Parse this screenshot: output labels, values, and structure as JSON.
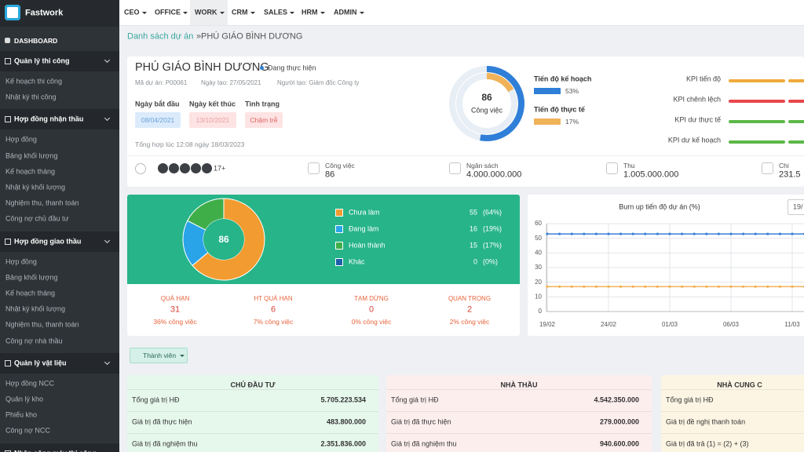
{
  "sidebar": {
    "brand": "Fastwork",
    "dashboard": "DASHBOARD",
    "sections": [
      {
        "title": "Quản lý thi công",
        "items": [
          "Kế hoạch thi công",
          "Nhật ký thi công"
        ]
      },
      {
        "title": "Hợp đồng nhận thầu",
        "items": [
          "Hợp đồng",
          "Bảng khối lượng",
          "Kế hoạch tháng",
          "Nhật ký khối lượng",
          "Nghiệm thu, thanh toán",
          "Công nợ chủ đầu tư"
        ]
      },
      {
        "title": "Hợp đồng giao thầu",
        "items": [
          "Hợp đồng",
          "Bảng khối lượng",
          "Kế hoạch tháng",
          "Nhật ký khối lượng",
          "Nghiệm thu, thanh toán",
          "Công nợ nhà thầu"
        ]
      },
      {
        "title": "Quản lý vật liệu",
        "items": [
          "Hợp đồng NCC",
          "Quản lý kho",
          "Phiếu kho",
          "Công nợ NCC"
        ]
      },
      {
        "title": "Nhập công máy thi công",
        "items": []
      }
    ]
  },
  "topnav": [
    "CEO",
    "OFFICE",
    "WORK",
    "CRM",
    "SALES",
    "HRM",
    "ADMIN"
  ],
  "breadcrumb": {
    "parent": "Danh sách dự án",
    "separator": "»",
    "current": "PHÚ GIÁO BÌNH DƯƠNG"
  },
  "project": {
    "title": "PHÚ GIÁO BÌNH DƯƠNG",
    "status": "Đang thực hiện",
    "meta": [
      "Mã dự án: P00061",
      "Ngày tạo: 27/05/2021",
      "Người tạo: Giám đốc Công ty"
    ],
    "fields": [
      {
        "label": "Ngày bắt đầu",
        "value": "08/04/2021"
      },
      {
        "label": "Ngày kết thúc",
        "value": "13/10/2021"
      },
      {
        "label": "Tình trạng",
        "value": "Chậm trễ"
      }
    ],
    "updated": "Tổng hợp lúc 12:08 ngày 18/03/2023",
    "members_more": "17+",
    "stats": [
      {
        "label": "Công việc",
        "value": "86"
      },
      {
        "label": "Ngân sách",
        "value": "4.000.000.000"
      },
      {
        "label": "Thu",
        "value": "1.005.000.000"
      },
      {
        "label": "Chi",
        "value": "231.5"
      }
    ]
  },
  "kpi": [
    {
      "label": "KPI tiến độ",
      "color": "#f0ab3c"
    },
    {
      "label": "KPI chênh lệch",
      "color": "#e8474b"
    },
    {
      "label": "KPI dư thực tế",
      "color": "#5cb848"
    },
    {
      "label": "KPI dư kế hoạch",
      "color": "#5cb848"
    }
  ],
  "task_stats": [
    {
      "label": "QUÁ HẠN",
      "value": "31",
      "note": "36% công việc"
    },
    {
      "label": "HT QUÁ HẠN",
      "value": "6",
      "note": "7% công việc"
    },
    {
      "label": "TẠM DỪNG",
      "value": "0",
      "note": "0% công việc"
    },
    {
      "label": "QUAN TRỌNG",
      "value": "2",
      "note": "2% công việc"
    }
  ],
  "member_button": "Thành viên",
  "date_input": "19/",
  "finance": [
    {
      "title": "CHỦ ĐẦU TƯ",
      "rows": [
        {
          "label": "Tổng giá trị HĐ",
          "value": "5.705.223.534"
        },
        {
          "label": "Giá trị đã thực hiện",
          "value": "483.800.000"
        },
        {
          "label": "Giá trị đã nghiệm thu",
          "value": "2.351.836.000"
        }
      ]
    },
    {
      "title": "NHÀ THẦU",
      "rows": [
        {
          "label": "Tổng giá trị HĐ",
          "value": "4.542.350.000"
        },
        {
          "label": "Giá trị đã thực hiện",
          "value": "279.000.000"
        },
        {
          "label": "Giá trị đã nghiệm thu",
          "value": "940.600.000"
        }
      ]
    },
    {
      "title": "NHÀ CUNG C",
      "rows": [
        {
          "label": "Tổng giá trị HĐ"
        },
        {
          "label": "Giá trị đề nghị thanh toán"
        },
        {
          "label": "Giá trị đã trả (1) = (2) + (3)"
        }
      ]
    }
  ],
  "chart_data": [
    {
      "type": "progress_ring",
      "center_value": 86,
      "center_label": "Công việc",
      "categories": [
        "Tiến độ kế hoạch",
        "Tiến độ thực tế"
      ],
      "values": [
        53,
        17
      ],
      "value_labels": [
        "53%",
        "17%"
      ],
      "colors": [
        "#2f7fd8",
        "#f0b35a"
      ]
    },
    {
      "type": "donut",
      "total": 86,
      "categories": [
        "Chưa làm",
        "Đang làm",
        "Hoàn thành",
        "Khác"
      ],
      "values": [
        55,
        16,
        15,
        0
      ],
      "percents": [
        64,
        19,
        17,
        0
      ],
      "percent_labels": [
        "(64%)",
        "(19%)",
        "(17%)",
        "(0%)"
      ],
      "colors": [
        "#f29b30",
        "#2aa4e8",
        "#3fae49",
        "#1d5fa8"
      ]
    },
    {
      "type": "line",
      "title": "Burn up tiến độ dự án (%)",
      "categories": [
        "19/02",
        null,
        null,
        null,
        null,
        "24/02",
        null,
        null,
        null,
        null,
        "01/03",
        null,
        null,
        null,
        null,
        "06/03",
        null,
        null,
        null,
        null,
        "11/03",
        null
      ],
      "series": [
        {
          "color": "#3a7fd5",
          "values": [
            53,
            53,
            53,
            53,
            53,
            53,
            53,
            53,
            53,
            53,
            53,
            53,
            53,
            53,
            53,
            53,
            53,
            53,
            53,
            53,
            53,
            53
          ]
        },
        {
          "color": "#f0b35a",
          "values": [
            17,
            17,
            17,
            17,
            17,
            17,
            17,
            17,
            17,
            17,
            17,
            17,
            17,
            17,
            17,
            17,
            17,
            17,
            17,
            17,
            17,
            17
          ]
        }
      ],
      "ylim": [
        0,
        60
      ],
      "yticks": [
        0,
        10,
        20,
        30,
        40,
        50,
        60
      ],
      "grid": true
    }
  ]
}
